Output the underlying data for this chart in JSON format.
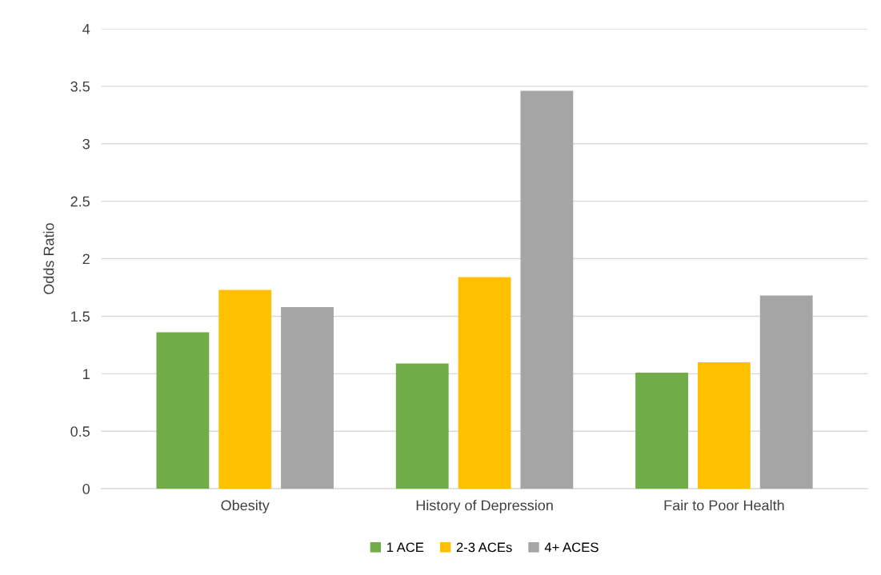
{
  "chart_data": {
    "type": "bar",
    "ylabel": "Odds Ratio",
    "categories": [
      "Obesity",
      "History of Depression",
      "Fair to Poor Health"
    ],
    "series": [
      {
        "name": "1 ACE",
        "color": "#70ad47",
        "values": [
          1.36,
          1.09,
          1.01
        ]
      },
      {
        "name": "2-3 ACEs",
        "color": "#ffc000",
        "values": [
          1.73,
          1.84,
          1.1
        ]
      },
      {
        "name": "4+ ACES",
        "color": "#a5a5a5",
        "values": [
          1.58,
          3.46,
          1.68
        ]
      }
    ],
    "ylim": [
      0,
      4
    ],
    "yticks": [
      0,
      {
        "value": 0.5,
        "label": "0.5"
      },
      1,
      {
        "value": 1.5,
        "label": "1.5"
      },
      2,
      {
        "value": 2.5,
        "label": "2.5"
      },
      3,
      {
        "value": 3.5,
        "label": "3.5"
      },
      4
    ],
    "grid": "y",
    "legend": "bottom"
  }
}
